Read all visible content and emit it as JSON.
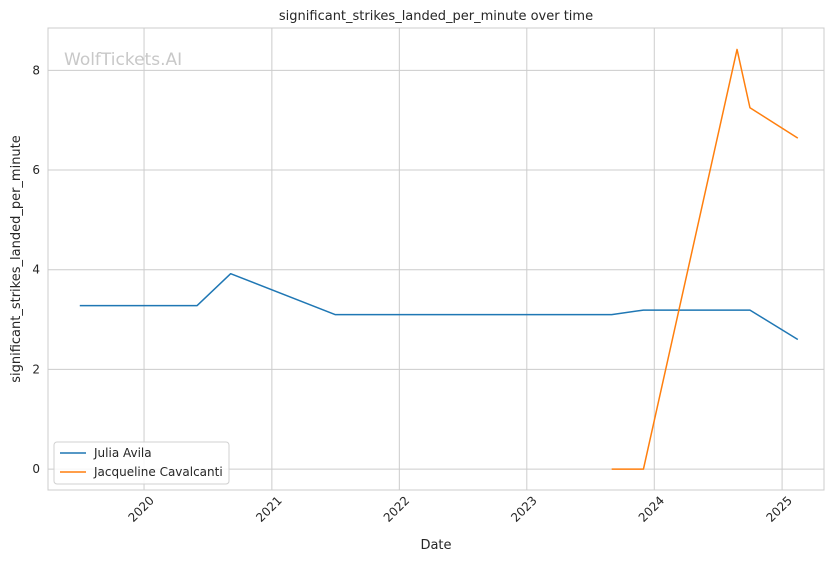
{
  "chart_data": {
    "type": "line",
    "title": "significant_strikes_landed_per_minute over time",
    "xlabel": "Date",
    "ylabel": "significant_strikes_landed_per_minute",
    "watermark": "WolfTickets.AI",
    "xlim": [
      "2019-04-01",
      "2025-05-01"
    ],
    "ylim": [
      -0.42,
      8.85
    ],
    "x_ticks": [
      "2020-01-01",
      "2021-01-01",
      "2022-01-01",
      "2023-01-01",
      "2024-01-01",
      "2025-01-01"
    ],
    "x_tick_labels": [
      "2020",
      "2021",
      "2022",
      "2023",
      "2024",
      "2025"
    ],
    "y_ticks": [
      0,
      2,
      4,
      6,
      8
    ],
    "y_tick_labels": [
      "0",
      "2",
      "4",
      "6",
      "8"
    ],
    "grid": true,
    "legend_position": "lower-left",
    "series": [
      {
        "name": "Julia Avila",
        "color": "#1f77b4",
        "points": [
          {
            "x": "2019-07-01",
            "y": 3.28
          },
          {
            "x": "2020-06-01",
            "y": 3.28
          },
          {
            "x": "2020-09-05",
            "y": 3.92
          },
          {
            "x": "2021-07-01",
            "y": 3.1
          },
          {
            "x": "2023-09-01",
            "y": 3.1
          },
          {
            "x": "2023-12-01",
            "y": 3.19
          },
          {
            "x": "2024-10-01",
            "y": 3.19
          },
          {
            "x": "2025-02-15",
            "y": 2.6
          }
        ]
      },
      {
        "name": "Jacqueline Cavalcanti",
        "color": "#ff7f0e",
        "points": [
          {
            "x": "2023-09-01",
            "y": 0.0
          },
          {
            "x": "2023-12-01",
            "y": 0.0
          },
          {
            "x": "2024-08-25",
            "y": 8.42
          },
          {
            "x": "2024-10-01",
            "y": 7.25
          },
          {
            "x": "2025-02-15",
            "y": 6.64
          }
        ]
      }
    ]
  }
}
